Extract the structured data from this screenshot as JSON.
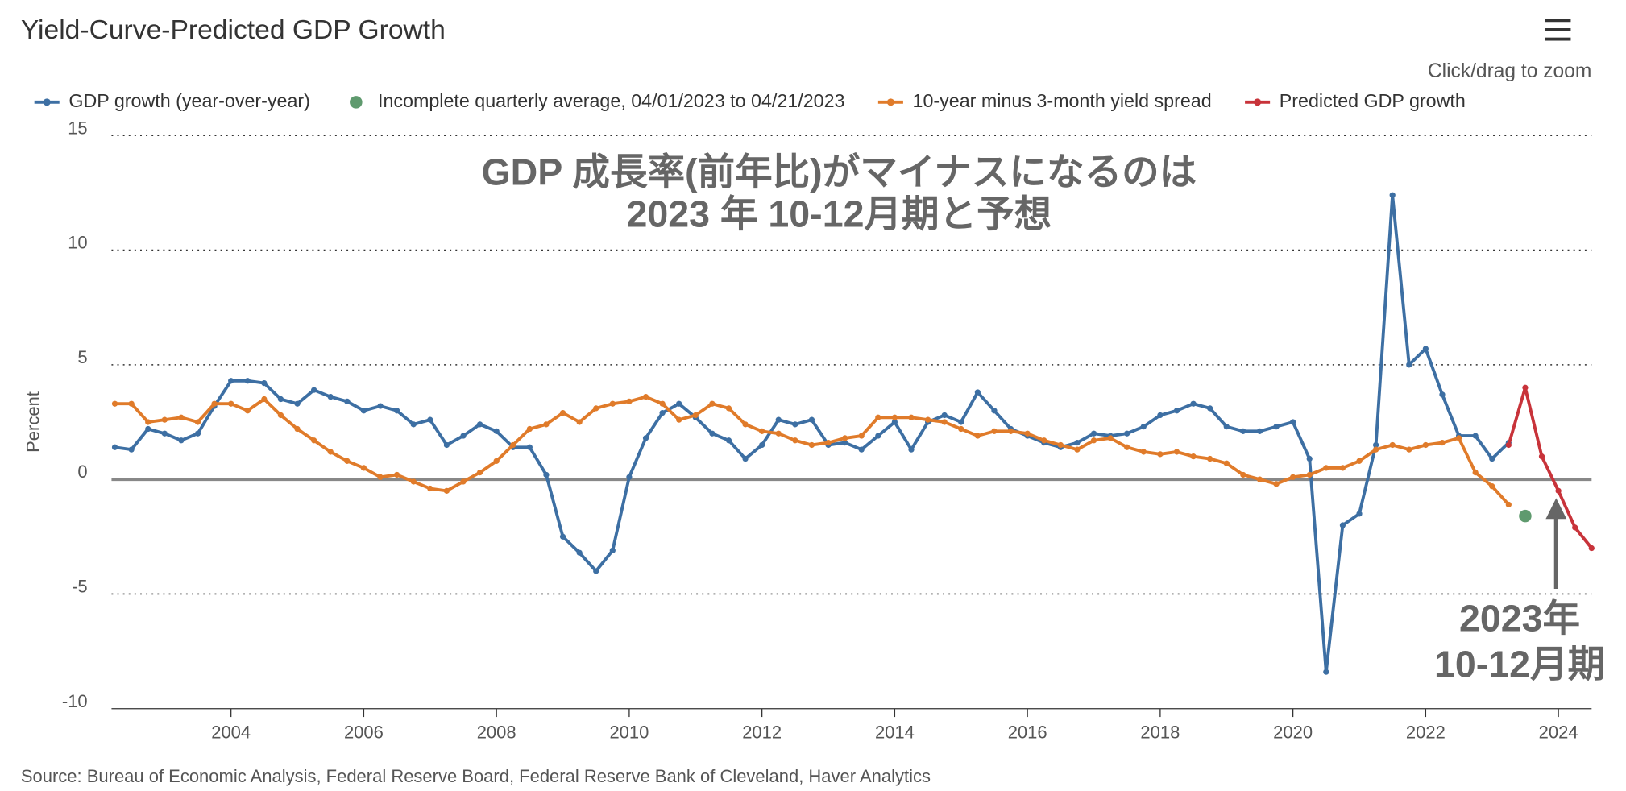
{
  "chart_data": {
    "type": "line",
    "title": "Yield-Curve-Predicted GDP Growth",
    "zoom_hint": "Click/drag to zoom",
    "y_label": "Percent",
    "source": "Source: Bureau of Economic Analysis, Federal Reserve Board, Federal Reserve Bank of Cleveland, Haver Analytics",
    "annotations": [
      "GDP 成長率(前年比)がマイナスになるのは",
      "2023 年 10-12月期と予想",
      "2023年",
      "10-12月期"
    ],
    "x": [
      2002.25,
      2002.5,
      2002.75,
      2003,
      2003.25,
      2003.5,
      2003.75,
      2004,
      2004.25,
      2004.5,
      2004.75,
      2005,
      2005.25,
      2005.5,
      2005.75,
      2006,
      2006.25,
      2006.5,
      2006.75,
      2007,
      2007.25,
      2007.5,
      2007.75,
      2008,
      2008.25,
      2008.5,
      2008.75,
      2009,
      2009.25,
      2009.5,
      2009.75,
      2010,
      2010.25,
      2010.5,
      2010.75,
      2011,
      2011.25,
      2011.5,
      2011.75,
      2012,
      2012.25,
      2012.5,
      2012.75,
      2013,
      2013.25,
      2013.5,
      2013.75,
      2014,
      2014.25,
      2014.5,
      2014.75,
      2015,
      2015.25,
      2015.5,
      2015.75,
      2016,
      2016.25,
      2016.5,
      2016.75,
      2017,
      2017.25,
      2017.5,
      2017.75,
      2018,
      2018.25,
      2018.5,
      2018.75,
      2019,
      2019.25,
      2019.5,
      2019.75,
      2020,
      2020.25,
      2020.5,
      2020.75,
      2021,
      2021.25,
      2021.5,
      2021.75,
      2022,
      2022.25,
      2022.5,
      2022.75,
      2023,
      2023.25
    ],
    "series": [
      {
        "name": "GDP growth (year-over-year)",
        "color": "#3d6fa3",
        "values": [
          1.4,
          1.3,
          2.2,
          2.0,
          1.7,
          2.0,
          3.2,
          4.3,
          4.3,
          4.2,
          3.5,
          3.3,
          3.9,
          3.6,
          3.4,
          3.0,
          3.2,
          3.0,
          2.4,
          2.6,
          1.5,
          1.9,
          2.4,
          2.1,
          1.4,
          1.4,
          0.2,
          -2.5,
          -3.2,
          -4.0,
          -3.1,
          0.1,
          1.8,
          2.9,
          3.3,
          2.7,
          2.0,
          1.7,
          0.9,
          1.5,
          2.6,
          2.4,
          2.6,
          1.5,
          1.6,
          1.3,
          1.9,
          2.5,
          1.3,
          2.5,
          2.8,
          2.5,
          3.8,
          3.0,
          2.2,
          1.9,
          1.6,
          1.4,
          1.6,
          2.0,
          1.9,
          2.0,
          2.3,
          2.8,
          3.0,
          3.3,
          3.1,
          2.3,
          2.1,
          2.1,
          2.3,
          2.5,
          0.9,
          -8.4,
          -2.0,
          -1.5,
          1.5,
          12.4,
          5.0,
          5.7,
          3.7,
          1.9,
          1.9,
          0.9,
          1.6
        ]
      },
      {
        "name": "Incomplete quarterly average, 04/01/2023 to 04/21/2023",
        "color": "#5f9a6e",
        "marker_only": true,
        "x": [
          2023.5
        ],
        "values": [
          -1.6
        ]
      },
      {
        "name": "10-year minus 3-month yield spread",
        "color": "#e07b2a",
        "values": [
          3.3,
          3.3,
          2.5,
          2.6,
          2.7,
          2.5,
          3.3,
          3.3,
          3.0,
          3.5,
          2.8,
          2.2,
          1.7,
          1.2,
          0.8,
          0.5,
          0.1,
          0.2,
          -0.1,
          -0.4,
          -0.5,
          -0.1,
          0.3,
          0.8,
          1.5,
          2.2,
          2.4,
          2.9,
          2.5,
          3.1,
          3.3,
          3.4,
          3.6,
          3.3,
          2.6,
          2.8,
          3.3,
          3.1,
          2.4,
          2.1,
          2.0,
          1.7,
          1.5,
          1.6,
          1.8,
          1.9,
          2.7,
          2.7,
          2.7,
          2.6,
          2.5,
          2.2,
          1.9,
          2.1,
          2.1,
          2.0,
          1.7,
          1.5,
          1.3,
          1.7,
          1.8,
          1.4,
          1.2,
          1.1,
          1.2,
          1.0,
          0.9,
          0.7,
          0.2,
          0.0,
          -0.2,
          0.1,
          0.2,
          0.5,
          0.5,
          0.8,
          1.3,
          1.5,
          1.3,
          1.5,
          1.6,
          1.8,
          0.3,
          -0.3,
          -1.1
        ]
      },
      {
        "name": "Predicted GDP growth",
        "color": "#c8333a",
        "x": [
          2023.25,
          2023.5,
          2023.75,
          2024,
          2024.25,
          2024.5
        ],
        "values": [
          1.5,
          4.0,
          1.0,
          -0.5,
          -2.1,
          -3.0
        ]
      }
    ],
    "xlim": [
      2002.2,
      2024.5
    ],
    "xticks": [
      2004,
      2006,
      2008,
      2010,
      2012,
      2014,
      2016,
      2018,
      2020,
      2022,
      2024
    ],
    "ylim": [
      -10,
      15
    ],
    "yticks": [
      -10,
      -5,
      0,
      5,
      10,
      15
    ],
    "grid": true,
    "legend": "top"
  }
}
